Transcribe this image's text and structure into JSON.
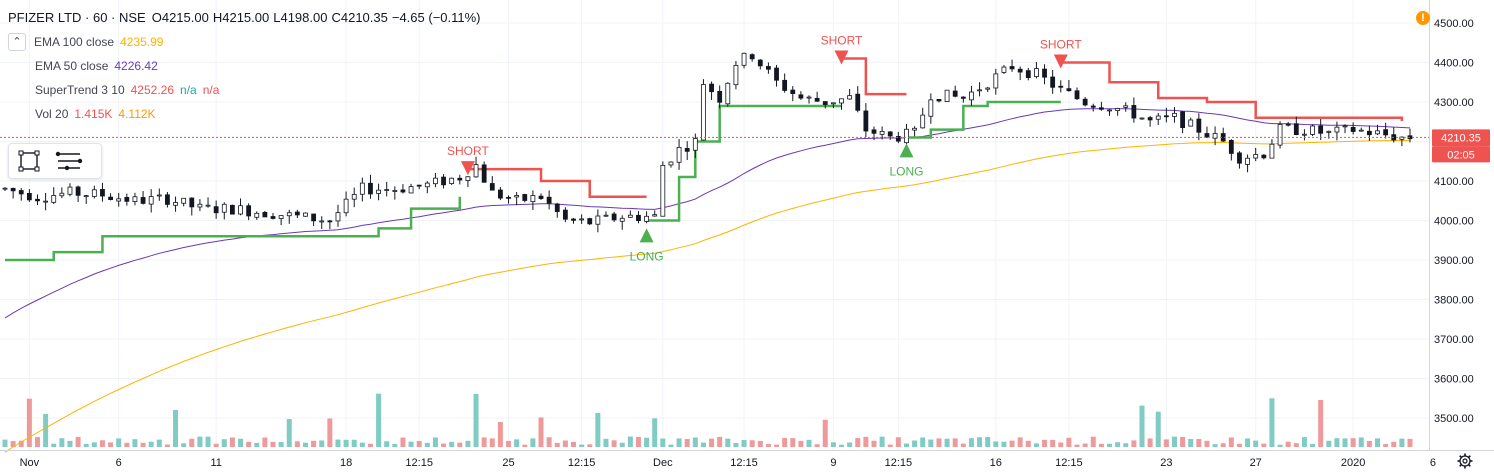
{
  "header": {
    "symbol": "PFIZER LTD · 60 · NSE",
    "open": "O4215.00",
    "high": "H4215.00",
    "low": "L4198.00",
    "close": "C4210.35",
    "change": "−4.65 (−0.11%)"
  },
  "indicators": [
    {
      "label": "EMA 100 close",
      "values": [
        "4235.99"
      ],
      "color": "#ffb300"
    },
    {
      "label": "EMA 50 close",
      "values": [
        "4226.42"
      ],
      "color": "#673ab7"
    },
    {
      "label": "SuperTrend 3 10",
      "values": [
        "4252.26",
        "n/a",
        "n/a"
      ],
      "colors": [
        "#ef5350",
        "#26a69a",
        "#ef5350"
      ]
    },
    {
      "label": "Vol 20",
      "values": [
        "1.415K",
        "4.112K"
      ],
      "colors": [
        "#ef5350",
        "#ff9800"
      ]
    }
  ],
  "price_axis": {
    "last_price": "4210.35",
    "countdown": "02:05",
    "ticks": [
      "4500.00",
      "4400.00",
      "4300.00",
      "4200.00",
      "4100.00",
      "4000.00",
      "3900.00",
      "3800.00",
      "3700.00",
      "3600.00",
      "3500.00"
    ]
  },
  "time_axis": {
    "labels": [
      "Nov",
      "6",
      "11",
      "18",
      "12:15",
      "25",
      "12:15",
      "Dec",
      "12:15",
      "9",
      "12:15",
      "16",
      "12:15",
      "23",
      "27",
      "2020",
      "6"
    ]
  },
  "signals": [
    {
      "type": "SHORT",
      "x": 57,
      "price": 4130
    },
    {
      "type": "LONG",
      "x": 79,
      "price": 3965
    },
    {
      "type": "SHORT",
      "x": 103,
      "price": 4410
    },
    {
      "type": "LONG",
      "x": 111,
      "price": 4180
    },
    {
      "type": "SHORT",
      "x": 130,
      "price": 4400
    }
  ],
  "chart_data": {
    "type": "candlestick",
    "title": "PFIZER LTD · 60 · NSE",
    "ylim": [
      3440,
      4530
    ],
    "xlim": [
      0,
      173
    ],
    "x_ticks": [
      {
        "x": 3,
        "label": "Nov"
      },
      {
        "x": 14,
        "label": "6"
      },
      {
        "x": 26,
        "label": "11"
      },
      {
        "x": 42,
        "label": "18"
      },
      {
        "x": 51,
        "label": "12:15"
      },
      {
        "x": 62,
        "label": "25"
      },
      {
        "x": 71,
        "label": "12:15"
      },
      {
        "x": 81,
        "label": "Dec"
      },
      {
        "x": 91,
        "label": "12:15"
      },
      {
        "x": 102,
        "label": "9"
      },
      {
        "x": 110,
        "label": "12:15"
      },
      {
        "x": 122,
        "label": "16"
      },
      {
        "x": 131,
        "label": "12:15"
      },
      {
        "x": 143,
        "label": "23"
      },
      {
        "x": 154,
        "label": "27"
      },
      {
        "x": 166,
        "label": "2020"
      },
      {
        "x": 178,
        "label": "6"
      }
    ],
    "close_anchors": [
      [
        0,
        4080
      ],
      [
        4,
        4060
      ],
      [
        8,
        4070
      ],
      [
        12,
        4065
      ],
      [
        16,
        4050
      ],
      [
        20,
        4055
      ],
      [
        24,
        4030
      ],
      [
        28,
        4030
      ],
      [
        32,
        4020
      ],
      [
        36,
        4010
      ],
      [
        40,
        4000
      ],
      [
        44,
        4080
      ],
      [
        48,
        4080
      ],
      [
        52,
        4090
      ],
      [
        56,
        4110
      ],
      [
        58,
        4140
      ],
      [
        60,
        4070
      ],
      [
        63,
        4050
      ],
      [
        66,
        4060
      ],
      [
        69,
        4000
      ],
      [
        72,
        3995
      ],
      [
        76,
        4010
      ],
      [
        80,
        4010
      ],
      [
        81,
        4140
      ],
      [
        83,
        4180
      ],
      [
        85,
        4200
      ],
      [
        86,
        4350
      ],
      [
        88,
        4310
      ],
      [
        90,
        4400
      ],
      [
        92,
        4420
      ],
      [
        95,
        4350
      ],
      [
        98,
        4310
      ],
      [
        101,
        4300
      ],
      [
        104,
        4310
      ],
      [
        106,
        4230
      ],
      [
        109,
        4210
      ],
      [
        112,
        4220
      ],
      [
        114,
        4320
      ],
      [
        118,
        4310
      ],
      [
        121,
        4350
      ],
      [
        124,
        4390
      ],
      [
        127,
        4370
      ],
      [
        130,
        4330
      ],
      [
        133,
        4300
      ],
      [
        136,
        4290
      ],
      [
        139,
        4270
      ],
      [
        141,
        4250
      ],
      [
        144,
        4260
      ],
      [
        147,
        4230
      ],
      [
        150,
        4200
      ],
      [
        152,
        4160
      ],
      [
        155,
        4170
      ],
      [
        157,
        4230
      ],
      [
        160,
        4230
      ],
      [
        163,
        4220
      ],
      [
        166,
        4230
      ],
      [
        169,
        4220
      ],
      [
        172,
        4210
      ]
    ],
    "volume_range": [
      0,
      8000
    ],
    "series": [
      {
        "name": "EMA 100 close",
        "color": "#ffb300"
      },
      {
        "name": "EMA 50 close",
        "color": "#673ab7"
      },
      {
        "name": "SuperTrend 3 10",
        "colors": [
          "#ef5350",
          "#4caf50"
        ]
      },
      {
        "name": "Vol 20",
        "colors": [
          "#ef9a9a",
          "#80cbc4"
        ]
      }
    ],
    "colors": {
      "up": "#26a69a",
      "down": "#ef5350",
      "wick": "#131722",
      "grid": "#f0f3fa",
      "axis_text": "#131722",
      "price_line": "#ef5350",
      "long": "#4caf50",
      "short": "#ef5350",
      "supertrend_up": "#4caf50",
      "supertrend_down": "#ef5350"
    }
  }
}
